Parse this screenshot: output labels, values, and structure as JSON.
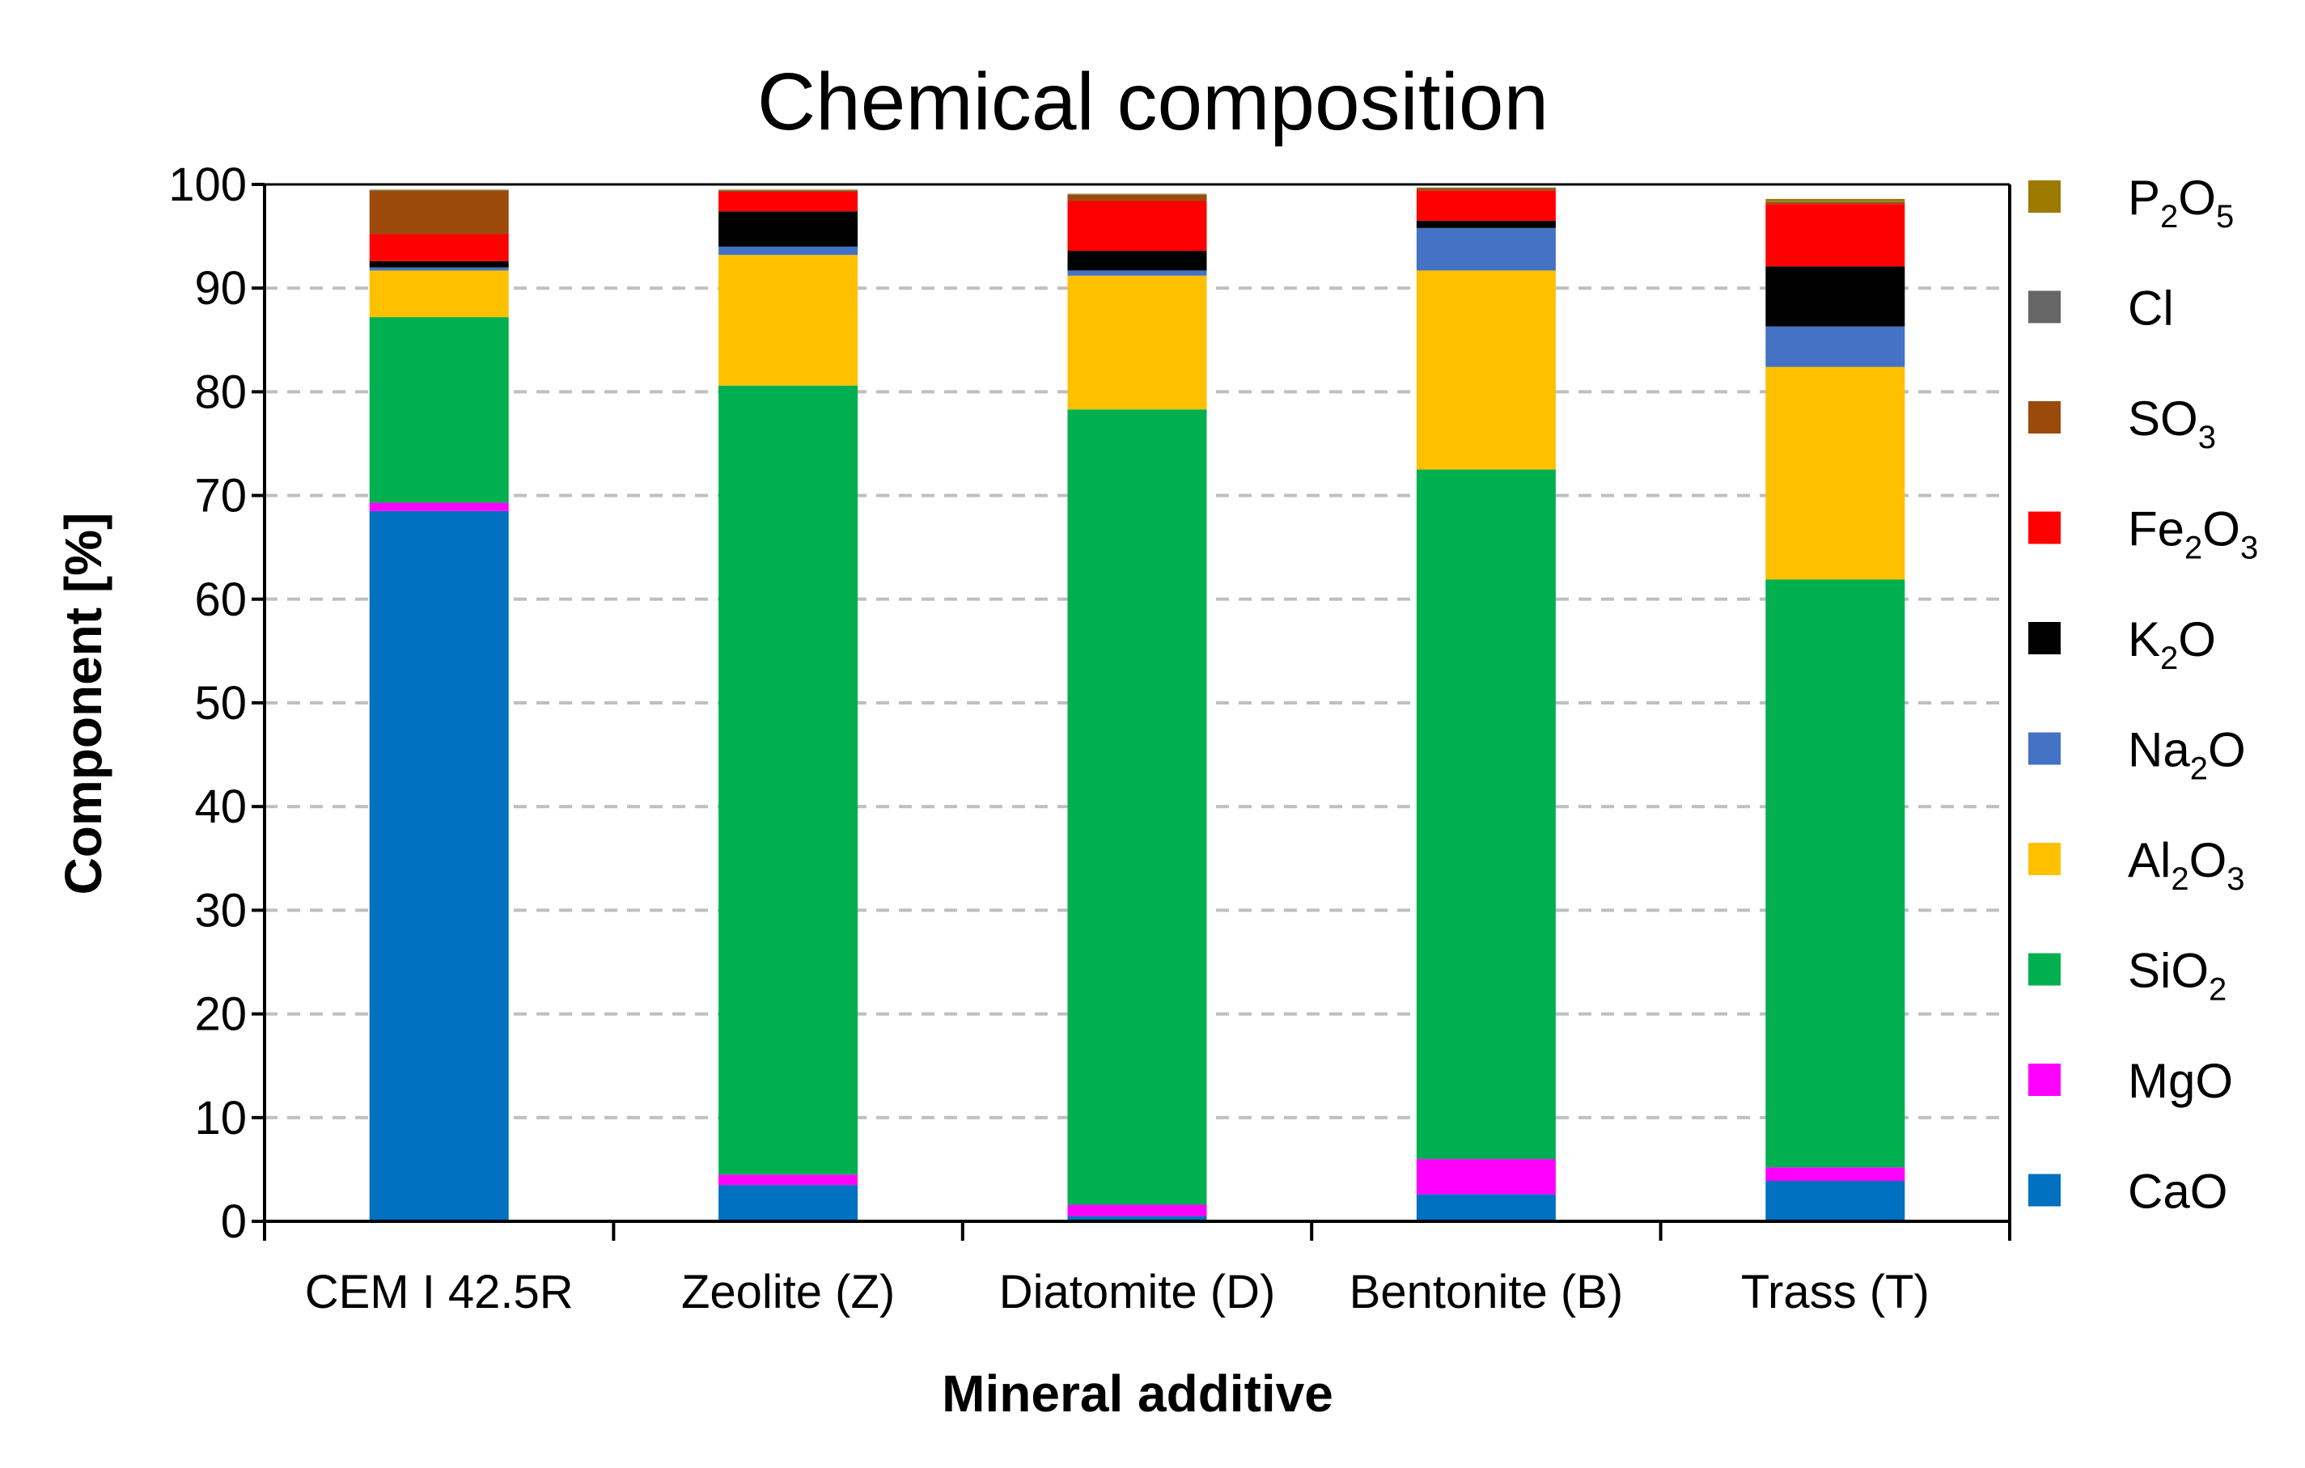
{
  "chart_data": {
    "type": "bar",
    "stacked": true,
    "title": "Chemical composition",
    "xlabel": "Mineral additive",
    "ylabel": "Component [%]",
    "ylim": [
      0,
      100
    ],
    "yticks": [
      "0",
      "10",
      "20",
      "30",
      "40",
      "50",
      "60",
      "70",
      "80",
      "90",
      "100"
    ],
    "grid": "horizontal dashed",
    "legend_position": "right",
    "categories": [
      "CEM I 42.5R",
      "Zeolite (Z)",
      "Diatomite (D)",
      "Bentonite (B)",
      "Trass (T)"
    ],
    "series": [
      {
        "name": "CaO",
        "parts": [
          "CaO"
        ],
        "color": "#0070C0",
        "values": [
          68.5,
          3.5,
          0.5,
          2.6,
          3.9
        ]
      },
      {
        "name": "MgO",
        "parts": [
          "MgO"
        ],
        "color": "#FF00FF",
        "values": [
          0.8,
          1.0,
          1.1,
          3.4,
          1.3
        ]
      },
      {
        "name": "SiO2",
        "parts": [
          "SiO",
          "2"
        ],
        "color": "#00B050",
        "values": [
          17.9,
          76.1,
          76.7,
          66.5,
          56.7
        ]
      },
      {
        "name": "Al2O3",
        "parts": [
          "Al",
          "2",
          "O",
          "3"
        ],
        "color": "#FFC000",
        "values": [
          4.5,
          12.6,
          12.9,
          19.2,
          20.5
        ]
      },
      {
        "name": "Na2O",
        "parts": [
          "Na",
          "2",
          "O"
        ],
        "color": "#4472C4",
        "values": [
          0.3,
          0.8,
          0.5,
          4.1,
          3.9
        ]
      },
      {
        "name": "K2O",
        "parts": [
          "K",
          "2",
          "O"
        ],
        "color": "#000000",
        "values": [
          0.6,
          3.4,
          1.9,
          0.7,
          5.8
        ]
      },
      {
        "name": "Fe2O3",
        "parts": [
          "Fe",
          "2",
          "O",
          "3"
        ],
        "color": "#FF0000",
        "values": [
          2.6,
          1.9,
          4.8,
          2.9,
          6.0
        ]
      },
      {
        "name": "SO3",
        "parts": [
          "SO",
          "3"
        ],
        "color": "#9C4A0C",
        "values": [
          4.2,
          0.1,
          0.6,
          0.2,
          0.2
        ]
      },
      {
        "name": "Cl",
        "parts": [
          "Cl"
        ],
        "color": "#666666",
        "values": [
          0.05,
          0.05,
          0.05,
          0.05,
          0.05
        ]
      },
      {
        "name": "P2O5",
        "parts": [
          "P",
          "2",
          "O",
          "5"
        ],
        "color": "#9C7B00",
        "values": [
          0.05,
          0.05,
          0.05,
          0.05,
          0.25
        ]
      }
    ]
  }
}
